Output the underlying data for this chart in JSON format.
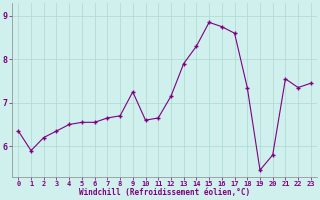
{
  "x": [
    0,
    1,
    2,
    3,
    4,
    5,
    6,
    7,
    8,
    9,
    10,
    11,
    12,
    13,
    14,
    15,
    16,
    17,
    18,
    19,
    20,
    21,
    22,
    23
  ],
  "y": [
    6.35,
    5.9,
    6.2,
    6.35,
    6.5,
    6.55,
    6.55,
    6.65,
    6.7,
    7.25,
    6.6,
    6.65,
    7.15,
    7.9,
    8.3,
    8.85,
    8.75,
    8.6,
    7.35,
    5.45,
    5.8,
    7.55,
    7.35,
    7.45
  ],
  "line_color": "#800080",
  "marker": "+",
  "marker_size": 3,
  "marker_edge_width": 1.0,
  "line_width": 0.8,
  "bg_color": "#cff0ec",
  "grid_color": "#aad8d0",
  "xlabel": "Windchill (Refroidissement éolien,°C)",
  "xlabel_fontsize": 5.5,
  "tick_fontsize": 5.0,
  "ylim": [
    5.3,
    9.3
  ],
  "xlim": [
    -0.5,
    23.5
  ],
  "yticks": [
    6,
    7,
    8,
    9
  ],
  "xticks": [
    0,
    1,
    2,
    3,
    4,
    5,
    6,
    7,
    8,
    9,
    10,
    11,
    12,
    13,
    14,
    15,
    16,
    17,
    18,
    19,
    20,
    21,
    22,
    23
  ]
}
